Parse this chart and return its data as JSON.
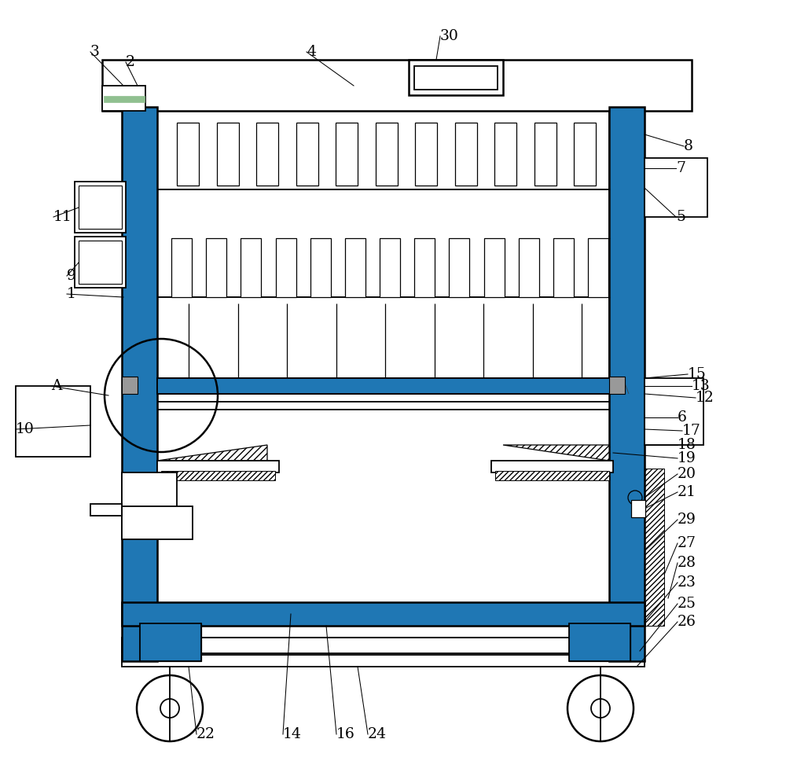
{
  "bg_color": "#ffffff",
  "line_color": "#000000",
  "fig_width": 10.0,
  "fig_height": 9.96,
  "lw": 1.3,
  "lw2": 1.8
}
